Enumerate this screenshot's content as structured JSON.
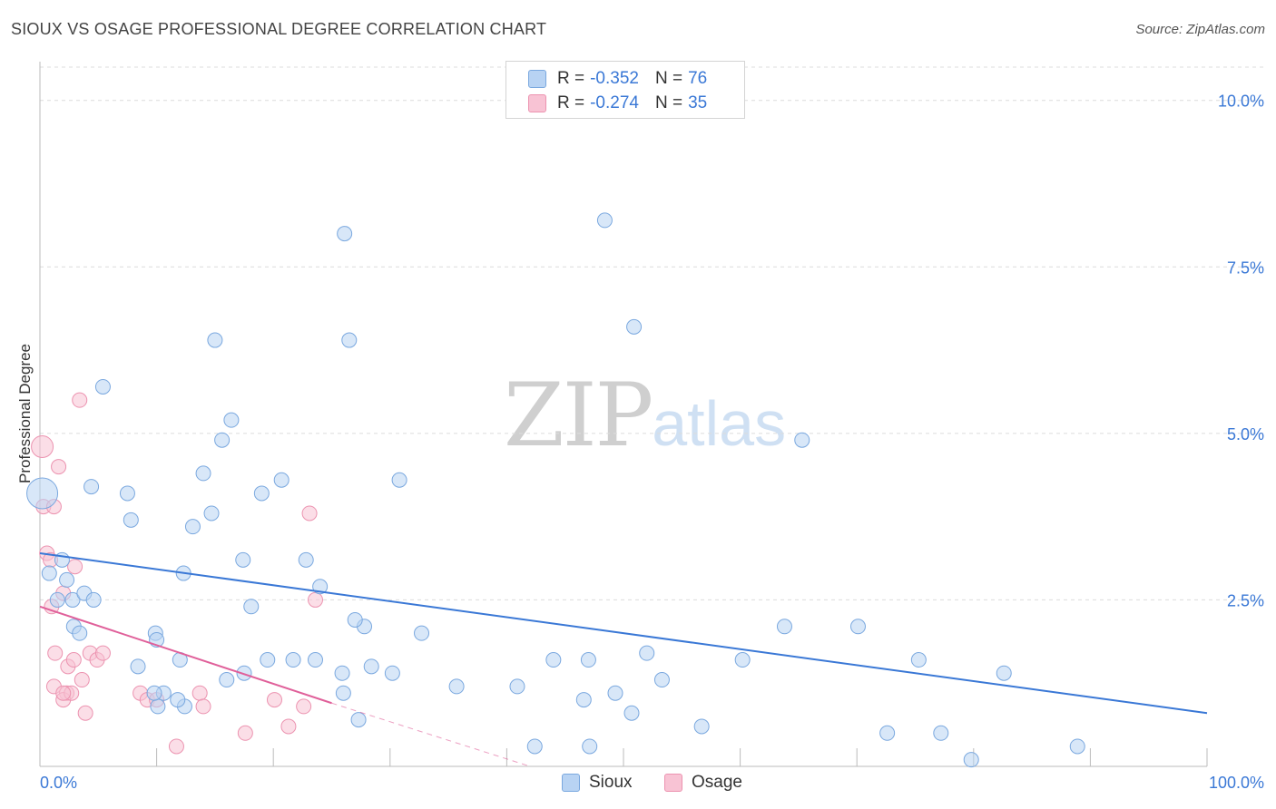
{
  "header": {
    "title": "SIOUX VS OSAGE PROFESSIONAL DEGREE CORRELATION CHART",
    "source": "Source: ZipAtlas.com"
  },
  "legend": {
    "sioux": {
      "r_label": "R = ",
      "r_value": "-0.352",
      "n_label": "N = ",
      "n_value": "76"
    },
    "osage": {
      "r_label": "R = ",
      "r_value": "-0.274",
      "n_label": "N = ",
      "n_value": "35"
    }
  },
  "watermark": {
    "zip": "ZIP",
    "atlas": "atlas"
  },
  "colors": {
    "sioux_fill": "#b8d3f3",
    "sioux_stroke": "#7aa8df",
    "sioux_line": "#3a78d6",
    "osage_fill": "#f8c3d4",
    "osage_stroke": "#ec93b0",
    "osage_line": "#e0609a",
    "grid": "#dcdcdc",
    "tick_label": "#3a78d6"
  },
  "chart_data": {
    "type": "scatter",
    "title": "SIOUX VS OSAGE PROFESSIONAL DEGREE CORRELATION CHART",
    "xlabel": "",
    "ylabel": "Professional Degree",
    "xlim": [
      0,
      100
    ],
    "ylim": [
      0,
      10.5
    ],
    "x_tick_labels": [
      "0.0%",
      "100.0%"
    ],
    "y_ticks": [
      2.5,
      5.0,
      7.5,
      10.0
    ],
    "y_tick_labels": [
      "2.5%",
      "5.0%",
      "7.5%",
      "10.0%"
    ],
    "grid": true,
    "series": [
      {
        "name": "Sioux",
        "r": -0.352,
        "n": 76,
        "trend": {
          "x": [
            0,
            100
          ],
          "y": [
            3.2,
            0.8
          ]
        },
        "points": [
          [
            0.2,
            4.1
          ],
          [
            0.8,
            2.9
          ],
          [
            1.9,
            3.1
          ],
          [
            2.3,
            2.8
          ],
          [
            1.5,
            2.5
          ],
          [
            2.8,
            2.5
          ],
          [
            3.8,
            2.6
          ],
          [
            4.6,
            2.5
          ],
          [
            2.9,
            2.1
          ],
          [
            3.4,
            2.0
          ],
          [
            5.4,
            5.7
          ],
          [
            4.4,
            4.2
          ],
          [
            7.5,
            4.1
          ],
          [
            7.8,
            3.7
          ],
          [
            8.4,
            1.5
          ],
          [
            9.9,
            2.0
          ],
          [
            10.0,
            1.9
          ],
          [
            12.0,
            1.6
          ],
          [
            12.4,
            0.9
          ],
          [
            11.8,
            1.0
          ],
          [
            10.6,
            1.1
          ],
          [
            10.1,
            0.9
          ],
          [
            9.8,
            1.1
          ],
          [
            12.3,
            2.9
          ],
          [
            13.1,
            3.6
          ],
          [
            14.0,
            4.4
          ],
          [
            14.7,
            3.8
          ],
          [
            15.0,
            6.4
          ],
          [
            15.6,
            4.9
          ],
          [
            16.4,
            5.2
          ],
          [
            16.0,
            1.3
          ],
          [
            17.4,
            3.1
          ],
          [
            17.5,
            1.4
          ],
          [
            18.1,
            2.4
          ],
          [
            19.0,
            4.1
          ],
          [
            19.5,
            1.6
          ],
          [
            21.7,
            1.6
          ],
          [
            20.7,
            4.3
          ],
          [
            23.6,
            1.6
          ],
          [
            24.0,
            2.7
          ],
          [
            25.9,
            1.4
          ],
          [
            26.0,
            1.1
          ],
          [
            27.3,
            0.7
          ],
          [
            27.8,
            2.1
          ],
          [
            27.0,
            2.2
          ],
          [
            22.8,
            3.1
          ],
          [
            26.1,
            8.0
          ],
          [
            26.5,
            6.4
          ],
          [
            28.4,
            1.5
          ],
          [
            30.2,
            1.4
          ],
          [
            30.8,
            4.3
          ],
          [
            32.7,
            2.0
          ],
          [
            35.7,
            1.2
          ],
          [
            40.9,
            1.2
          ],
          [
            42.4,
            0.3
          ],
          [
            44.0,
            1.6
          ],
          [
            46.6,
            1.0
          ],
          [
            47.0,
            1.6
          ],
          [
            47.1,
            0.3
          ],
          [
            49.3,
            1.1
          ],
          [
            50.7,
            0.8
          ],
          [
            52.0,
            1.7
          ],
          [
            50.9,
            6.6
          ],
          [
            48.4,
            8.2
          ],
          [
            53.3,
            1.3
          ],
          [
            56.7,
            0.6
          ],
          [
            60.2,
            1.6
          ],
          [
            65.3,
            4.9
          ],
          [
            63.8,
            2.1
          ],
          [
            75.3,
            1.6
          ],
          [
            72.6,
            0.5
          ],
          [
            77.2,
            0.5
          ],
          [
            79.8,
            0.1
          ],
          [
            88.9,
            0.3
          ],
          [
            70.1,
            2.1
          ],
          [
            82.6,
            1.4
          ]
        ]
      },
      {
        "name": "Osage",
        "r": -0.274,
        "n": 35,
        "trend": {
          "x": [
            0,
            25
          ],
          "y": [
            2.4,
            0.95
          ]
        },
        "trend_dashed": {
          "x": [
            25,
            42
          ],
          "y": [
            0.95,
            0.0
          ]
        },
        "points": [
          [
            0.2,
            4.8
          ],
          [
            0.3,
            3.9
          ],
          [
            0.6,
            3.2
          ],
          [
            0.9,
            3.1
          ],
          [
            1.2,
            3.9
          ],
          [
            1.6,
            4.5
          ],
          [
            2.0,
            2.6
          ],
          [
            2.4,
            1.5
          ],
          [
            1.3,
            1.7
          ],
          [
            1.2,
            1.2
          ],
          [
            2.3,
            1.1
          ],
          [
            2.0,
            1.0
          ],
          [
            2.7,
            1.1
          ],
          [
            2.9,
            1.6
          ],
          [
            3.6,
            1.3
          ],
          [
            3.0,
            3.0
          ],
          [
            3.4,
            5.5
          ],
          [
            3.9,
            0.8
          ],
          [
            4.3,
            1.7
          ],
          [
            4.9,
            1.6
          ],
          [
            5.4,
            1.7
          ],
          [
            8.6,
            1.1
          ],
          [
            9.2,
            1.0
          ],
          [
            10.0,
            1.0
          ],
          [
            11.7,
            0.3
          ],
          [
            13.7,
            1.1
          ],
          [
            14.0,
            0.9
          ],
          [
            17.6,
            0.5
          ],
          [
            20.1,
            1.0
          ],
          [
            21.3,
            0.6
          ],
          [
            22.6,
            0.9
          ],
          [
            23.1,
            3.8
          ],
          [
            23.6,
            2.5
          ],
          [
            1.0,
            2.4
          ],
          [
            2.0,
            1.1
          ]
        ]
      }
    ]
  }
}
